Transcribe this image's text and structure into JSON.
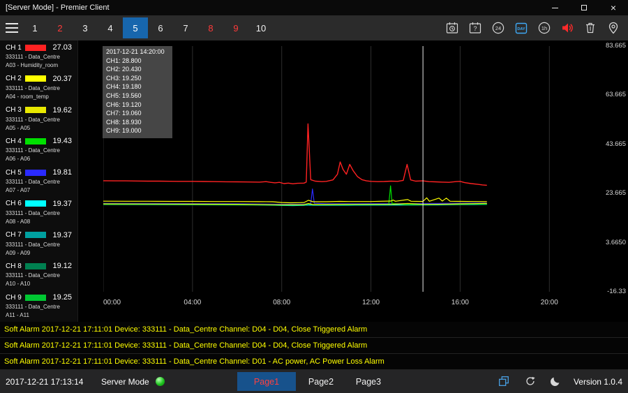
{
  "window": {
    "title": "[Server Mode] - Premier Client"
  },
  "colors": {
    "accent_blue": "#1766ad",
    "alert_red": "#ff3a3a",
    "alarm_yellow": "#ffff00",
    "icon_blue": "#3fa9f5",
    "led_green": "#1ec41e"
  },
  "toolbar": {
    "tabs": [
      {
        "label": "1",
        "state": "normal"
      },
      {
        "label": "2",
        "state": "alert"
      },
      {
        "label": "3",
        "state": "normal"
      },
      {
        "label": "4",
        "state": "normal"
      },
      {
        "label": "5",
        "state": "active"
      },
      {
        "label": "6",
        "state": "normal"
      },
      {
        "label": "7",
        "state": "normal"
      },
      {
        "label": "8",
        "state": "alert"
      },
      {
        "label": "9",
        "state": "alert"
      },
      {
        "label": "10",
        "state": "normal"
      }
    ],
    "right_icons": [
      {
        "name": "calendar-clock-icon",
        "label": ""
      },
      {
        "name": "calendar-question-icon",
        "label": "?"
      },
      {
        "name": "circle-24h-icon",
        "label": "24"
      },
      {
        "name": "day-view-icon",
        "label": "DAY",
        "active": true
      },
      {
        "name": "circle-1h-icon",
        "label": "1h"
      },
      {
        "name": "audio-alarm-icon",
        "label": "",
        "color": "#ff2a2a"
      },
      {
        "name": "trash-icon",
        "label": ""
      },
      {
        "name": "location-pin-icon",
        "label": ""
      }
    ]
  },
  "sidebar": {
    "channels": [
      {
        "name": "CH 1",
        "color": "#ff2222",
        "value": "27.03",
        "device": "333111 - Data_Centre",
        "point": "A03 - Humidity_room"
      },
      {
        "name": "CH 2",
        "color": "#ffff00",
        "value": "20.37",
        "device": "333111 - Data_Centre",
        "point": "A04 - room_temp"
      },
      {
        "name": "CH 3",
        "color": "#e8e800",
        "value": "19.62",
        "device": "333111 - Data_Centre",
        "point": "A05 - A05"
      },
      {
        "name": "CH 4",
        "color": "#00e000",
        "value": "19.43",
        "device": "333111 - Data_Centre",
        "point": "A06 - A06"
      },
      {
        "name": "CH 5",
        "color": "#2a2aff",
        "value": "19.81",
        "device": "333111 - Data_Centre",
        "point": "A07 - A07"
      },
      {
        "name": "CH 6",
        "color": "#00ffff",
        "value": "19.37",
        "device": "333111 - Data_Centre",
        "point": "A08 - A08"
      },
      {
        "name": "CH 7",
        "color": "#00a0a0",
        "value": "19.37",
        "device": "333111 - Data_Centre",
        "point": "A09 - A09"
      },
      {
        "name": "CH 8",
        "color": "#008050",
        "value": "19.12",
        "device": "333111 - Data_Centre",
        "point": "A10 - A10"
      },
      {
        "name": "CH 9",
        "color": "#00c832",
        "value": "19.25",
        "device": "333111 - Data_Centre",
        "point": "A11 - A11"
      }
    ]
  },
  "tooltip": {
    "title": "2017-12-21 14:20:00",
    "lines": [
      "CH1: 28.800",
      "CH2: 20.430",
      "CH3: 19.250",
      "CH4: 19.180",
      "CH5: 19.560",
      "CH6: 19.120",
      "CH7: 19.060",
      "CH8: 18.930",
      "CH9: 19.000"
    ]
  },
  "chart_data": {
    "type": "line",
    "title": "",
    "xlabel": "time",
    "ylabel": "",
    "grid": "vertical",
    "legend_position": "left-sidebar",
    "xlim_hours": [
      0,
      22.9
    ],
    "ylim": [
      -16.335,
      83.665
    ],
    "cursor_hour": 14.333,
    "x_ticks": [
      {
        "hour": 0,
        "label": "00:00"
      },
      {
        "hour": 4,
        "label": "04:00"
      },
      {
        "hour": 8,
        "label": "08:00"
      },
      {
        "hour": 12,
        "label": "12:00"
      },
      {
        "hour": 16,
        "label": "16:00"
      },
      {
        "hour": 20,
        "label": "20:00"
      }
    ],
    "y_ticks": [
      {
        "value": 83.665,
        "label": "83.665"
      },
      {
        "value": 63.665,
        "label": "63.665"
      },
      {
        "value": 43.665,
        "label": "43.665"
      },
      {
        "value": 23.665,
        "label": "23.665"
      },
      {
        "value": 3.665,
        "label": "3.6650"
      },
      {
        "value": -16.335,
        "label": "-16.33"
      }
    ],
    "series": [
      {
        "name": "CH1",
        "color": "#ff2222",
        "points": [
          [
            0,
            28.85
          ],
          [
            0.5,
            28.8
          ],
          [
            1,
            28.8
          ],
          [
            1.5,
            28.75
          ],
          [
            2,
            28.7
          ],
          [
            2.5,
            28.7
          ],
          [
            3,
            28.65
          ],
          [
            3.5,
            28.6
          ],
          [
            4,
            28.6
          ],
          [
            4.5,
            28.55
          ],
          [
            5,
            28.5
          ],
          [
            5.5,
            28.45
          ],
          [
            6,
            28.4
          ],
          [
            6.5,
            28.35
          ],
          [
            7,
            28.3
          ],
          [
            7.3,
            28.5
          ],
          [
            7.5,
            28.2
          ],
          [
            7.7,
            28.0
          ],
          [
            7.9,
            28.2
          ],
          [
            8.1,
            27.7
          ],
          [
            8.3,
            27.9
          ],
          [
            8.5,
            27.6
          ],
          [
            8.7,
            27.8
          ],
          [
            9,
            27.9
          ],
          [
            9.1,
            28.3
          ],
          [
            9.18,
            52.0
          ],
          [
            9.3,
            29.3
          ],
          [
            9.5,
            28.7
          ],
          [
            9.8,
            28.5
          ],
          [
            10,
            28.6
          ],
          [
            10.3,
            29.2
          ],
          [
            10.5,
            31.5
          ],
          [
            10.62,
            36.5
          ],
          [
            10.75,
            33.5
          ],
          [
            10.9,
            31.5
          ],
          [
            11.05,
            35.5
          ],
          [
            11.2,
            33.0
          ],
          [
            11.4,
            30.5
          ],
          [
            11.6,
            29.3
          ],
          [
            11.8,
            28.8
          ],
          [
            12,
            28.6
          ],
          [
            12.3,
            28.5
          ],
          [
            12.6,
            28.55
          ],
          [
            12.9,
            28.7
          ],
          [
            13.2,
            28.6
          ],
          [
            13.45,
            29.0
          ],
          [
            13.62,
            35.5
          ],
          [
            13.78,
            29.2
          ],
          [
            14,
            28.7
          ],
          [
            14.33,
            28.8
          ],
          [
            14.6,
            28.5
          ],
          [
            14.9,
            28.4
          ],
          [
            15.2,
            28.3
          ],
          [
            15.5,
            28.2
          ],
          [
            15.8,
            28.5
          ],
          [
            16,
            28.6
          ],
          [
            16.2,
            28.1
          ],
          [
            16.5,
            27.7
          ],
          [
            16.8,
            27.4
          ],
          [
            17,
            27.15
          ],
          [
            17.2,
            27.03
          ]
        ]
      },
      {
        "name": "CH2",
        "color": "#ffff00",
        "points": [
          [
            0,
            20.55
          ],
          [
            1,
            20.5
          ],
          [
            2,
            20.5
          ],
          [
            3,
            20.45
          ],
          [
            4,
            20.45
          ],
          [
            5,
            20.4
          ],
          [
            6,
            20.4
          ],
          [
            7,
            20.35
          ],
          [
            7.6,
            20.3
          ],
          [
            8,
            20.0
          ],
          [
            8.4,
            19.9
          ],
          [
            8.8,
            19.95
          ],
          [
            9,
            20.0
          ],
          [
            9.2,
            20.9
          ],
          [
            9.4,
            20.3
          ],
          [
            10,
            20.3
          ],
          [
            10.6,
            20.45
          ],
          [
            11,
            20.4
          ],
          [
            12,
            20.4
          ],
          [
            12.9,
            20.6
          ],
          [
            13,
            21.0
          ],
          [
            13.1,
            20.5
          ],
          [
            13.65,
            21.2
          ],
          [
            13.8,
            20.5
          ],
          [
            14.33,
            20.43
          ],
          [
            14.5,
            21.9
          ],
          [
            14.62,
            20.5
          ],
          [
            15.05,
            21.8
          ],
          [
            15.2,
            20.6
          ],
          [
            15.38,
            21.8
          ],
          [
            15.55,
            20.5
          ],
          [
            16,
            20.45
          ],
          [
            16.6,
            20.4
          ],
          [
            17.2,
            20.37
          ]
        ]
      },
      {
        "name": "CH3",
        "color": "#e8e800",
        "points": [
          [
            0,
            19.45
          ],
          [
            2,
            19.4
          ],
          [
            4,
            19.35
          ],
          [
            6,
            19.3
          ],
          [
            8,
            19.1
          ],
          [
            9,
            19.15
          ],
          [
            9.2,
            19.6
          ],
          [
            9.4,
            19.2
          ],
          [
            10,
            19.2
          ],
          [
            11,
            19.25
          ],
          [
            12,
            19.25
          ],
          [
            13,
            19.3
          ],
          [
            13.65,
            19.6
          ],
          [
            14.33,
            19.25
          ],
          [
            15,
            19.3
          ],
          [
            15.5,
            19.35
          ],
          [
            16,
            19.45
          ],
          [
            16.6,
            19.55
          ],
          [
            17.2,
            19.62
          ]
        ]
      },
      {
        "name": "CH4",
        "color": "#00e000",
        "points": [
          [
            0,
            19.3
          ],
          [
            2,
            19.25
          ],
          [
            4,
            19.2
          ],
          [
            6,
            19.15
          ],
          [
            8,
            18.95
          ],
          [
            9,
            19.0
          ],
          [
            9.2,
            19.5
          ],
          [
            9.4,
            19.1
          ],
          [
            10,
            19.1
          ],
          [
            11,
            19.15
          ],
          [
            12,
            19.2
          ],
          [
            12.8,
            19.3
          ],
          [
            12.88,
            26.8
          ],
          [
            12.95,
            19.6
          ],
          [
            13.5,
            19.2
          ],
          [
            14.33,
            19.18
          ],
          [
            15,
            19.25
          ],
          [
            16,
            19.3
          ],
          [
            16.6,
            19.38
          ],
          [
            17.2,
            19.43
          ]
        ]
      },
      {
        "name": "CH5",
        "color": "#2a2aff",
        "points": [
          [
            0,
            19.65
          ],
          [
            2,
            19.6
          ],
          [
            4,
            19.55
          ],
          [
            6,
            19.5
          ],
          [
            8,
            19.3
          ],
          [
            9,
            19.35
          ],
          [
            9.3,
            19.5
          ],
          [
            9.38,
            25.5
          ],
          [
            9.46,
            19.7
          ],
          [
            10,
            19.5
          ],
          [
            11,
            19.5
          ],
          [
            12,
            19.55
          ],
          [
            13,
            19.55
          ],
          [
            14.33,
            19.56
          ],
          [
            15,
            19.6
          ],
          [
            15.7,
            19.68
          ],
          [
            16.4,
            19.74
          ],
          [
            17.2,
            19.81
          ]
        ]
      },
      {
        "name": "CH6",
        "color": "#00ffff",
        "points": [
          [
            0,
            19.25
          ],
          [
            2,
            19.2
          ],
          [
            4,
            19.15
          ],
          [
            6,
            19.1
          ],
          [
            7.5,
            19.0
          ],
          [
            8,
            18.8
          ],
          [
            8.5,
            18.75
          ],
          [
            9,
            18.85
          ],
          [
            9.2,
            19.3
          ],
          [
            9.4,
            18.95
          ],
          [
            10,
            18.95
          ],
          [
            11,
            19.0
          ],
          [
            12,
            19.05
          ],
          [
            13,
            19.1
          ],
          [
            14.33,
            19.12
          ],
          [
            15,
            19.15
          ],
          [
            16,
            19.25
          ],
          [
            16.6,
            19.3
          ],
          [
            17.2,
            19.37
          ]
        ]
      },
      {
        "name": "CH7",
        "color": "#00a0a0",
        "points": [
          [
            0,
            19.3
          ],
          [
            2,
            19.25
          ],
          [
            4,
            19.2
          ],
          [
            6,
            19.15
          ],
          [
            8,
            18.9
          ],
          [
            9,
            18.95
          ],
          [
            10,
            18.95
          ],
          [
            11,
            19.0
          ],
          [
            12,
            19.0
          ],
          [
            13,
            19.05
          ],
          [
            14.33,
            19.06
          ],
          [
            15,
            19.1
          ],
          [
            16,
            19.2
          ],
          [
            16.6,
            19.3
          ],
          [
            17.2,
            19.37
          ]
        ]
      },
      {
        "name": "CH8",
        "color": "#008050",
        "points": [
          [
            0,
            19.15
          ],
          [
            2,
            19.1
          ],
          [
            4,
            19.05
          ],
          [
            6,
            19.0
          ],
          [
            8,
            18.8
          ],
          [
            9,
            18.85
          ],
          [
            10,
            18.85
          ],
          [
            11,
            18.85
          ],
          [
            12,
            18.9
          ],
          [
            13,
            18.9
          ],
          [
            14.33,
            18.93
          ],
          [
            15,
            18.95
          ],
          [
            16,
            19.05
          ],
          [
            17.2,
            19.12
          ]
        ]
      },
      {
        "name": "CH9",
        "color": "#00c832",
        "points": [
          [
            0,
            19.35
          ],
          [
            2,
            19.3
          ],
          [
            4,
            19.25
          ],
          [
            6,
            19.2
          ],
          [
            8,
            19.0
          ],
          [
            9,
            19.05
          ],
          [
            9.2,
            19.45
          ],
          [
            9.4,
            19.05
          ],
          [
            10,
            19.05
          ],
          [
            11,
            19.1
          ],
          [
            12,
            19.1
          ],
          [
            13,
            19.15
          ],
          [
            14.33,
            19.0
          ],
          [
            15,
            19.1
          ],
          [
            16,
            19.2
          ],
          [
            17.2,
            19.25
          ]
        ]
      }
    ]
  },
  "alarms": [
    "Soft Alarm 2017-12-21 17:11:01 Device: 333111 - Data_Centre Channel: D04 - D04, Close Triggered Alarm",
    "Soft Alarm 2017-12-21 17:11:01 Device: 333111 - Data_Centre Channel: D04 - D04, Close Triggered Alarm",
    "Soft Alarm 2017-12-21 17:11:01 Device: 333111 - Data_Centre Channel: D01 - AC power, AC Power Loss Alarm"
  ],
  "statusbar": {
    "time": "2017-12-21 17:13:14",
    "mode": "Server Mode",
    "pages": [
      {
        "label": "Page1",
        "active": true
      },
      {
        "label": "Page2",
        "active": false
      },
      {
        "label": "Page3",
        "active": false
      }
    ],
    "right_icons": [
      "cascade-windows-icon",
      "sync-icon",
      "night-mode-icon"
    ],
    "version": "Version 1.0.4"
  }
}
